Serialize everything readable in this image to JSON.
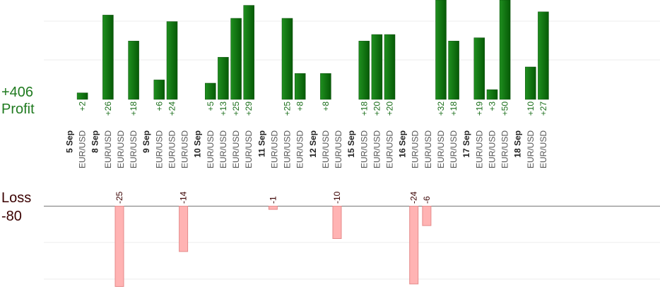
{
  "summary": {
    "profit_total": "+406",
    "profit_label": "Profit",
    "loss_label": "Loss",
    "loss_total": "-80"
  },
  "chart_data": {
    "type": "bar",
    "title": "",
    "xlabel": "",
    "ylabel": "",
    "colors": {
      "win": "#0a6b0a",
      "win_light": "#1f8f1f",
      "loss": "#ffb3b3",
      "loss_border": "#e58a8a"
    },
    "groups": [
      {
        "date": "5 Sep",
        "trades": [
          {
            "symbol": "EUR/USD",
            "value": 2,
            "label": "+2"
          }
        ]
      },
      {
        "date": "8 Sep",
        "trades": [
          {
            "symbol": "EUR/USD",
            "value": 26,
            "label": "+26"
          },
          {
            "symbol": "EUR/USD",
            "value": -25,
            "label": "-25"
          },
          {
            "symbol": "EUR/USD",
            "value": 18,
            "label": "+18"
          }
        ]
      },
      {
        "date": "9 Sep",
        "trades": [
          {
            "symbol": "EUR/USD",
            "value": 6,
            "label": "+6"
          },
          {
            "symbol": "EUR/USD",
            "value": 24,
            "label": "+24"
          },
          {
            "symbol": "EUR/USD",
            "value": -14,
            "label": "-14"
          }
        ]
      },
      {
        "date": "10 Sep",
        "trades": [
          {
            "symbol": "EUR/USD",
            "value": 5,
            "label": "+5"
          },
          {
            "symbol": "EUR/USD",
            "value": 13,
            "label": "+13"
          },
          {
            "symbol": "EUR/USD",
            "value": 25,
            "label": "+25"
          },
          {
            "symbol": "EUR/USD",
            "value": 29,
            "label": "+29"
          }
        ]
      },
      {
        "date": "11 Sep",
        "trades": [
          {
            "symbol": "EUR/USD",
            "value": -1,
            "label": "-1"
          },
          {
            "symbol": "EUR/USD",
            "value": 25,
            "label": "+25"
          },
          {
            "symbol": "EUR/USD",
            "value": 8,
            "label": "+8"
          }
        ]
      },
      {
        "date": "12 Sep",
        "trades": [
          {
            "symbol": "EUR/USD",
            "value": 8,
            "label": "+8"
          },
          {
            "symbol": "EUR/USD",
            "value": -10,
            "label": "-10"
          }
        ]
      },
      {
        "date": "15 Sep",
        "trades": [
          {
            "symbol": "EUR/USD",
            "value": 18,
            "label": "+18"
          },
          {
            "symbol": "EUR/USD",
            "value": 20,
            "label": "+20"
          },
          {
            "symbol": "EUR/USD",
            "value": 20,
            "label": "+20"
          }
        ]
      },
      {
        "date": "16 Sep",
        "trades": [
          {
            "symbol": "EUR/USD",
            "value": -24,
            "label": "-24"
          },
          {
            "symbol": "EUR/USD",
            "value": -6,
            "label": "-6"
          },
          {
            "symbol": "EUR/USD",
            "value": 32,
            "label": "+32"
          },
          {
            "symbol": "EUR/USD",
            "value": 18,
            "label": "+18"
          }
        ]
      },
      {
        "date": "17 Sep",
        "trades": [
          {
            "symbol": "EUR/USD",
            "value": 19,
            "label": "+19"
          },
          {
            "symbol": "EUR/USD",
            "value": 3,
            "label": "+3"
          },
          {
            "symbol": "EUR/USD",
            "value": 50,
            "label": "+50"
          }
        ]
      },
      {
        "date": "18 Sep",
        "trades": [
          {
            "symbol": "EUR/USD",
            "value": 10,
            "label": "+10"
          },
          {
            "symbol": "EUR/USD",
            "value": 27,
            "label": "+27"
          }
        ]
      }
    ]
  }
}
